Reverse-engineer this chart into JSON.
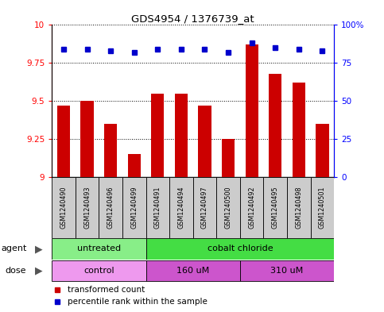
{
  "title": "GDS4954 / 1376739_at",
  "samples": [
    "GSM1240490",
    "GSM1240493",
    "GSM1240496",
    "GSM1240499",
    "GSM1240491",
    "GSM1240494",
    "GSM1240497",
    "GSM1240500",
    "GSM1240492",
    "GSM1240495",
    "GSM1240498",
    "GSM1240501"
  ],
  "transformed_count": [
    9.47,
    9.5,
    9.35,
    9.15,
    9.55,
    9.55,
    9.47,
    9.25,
    9.87,
    9.68,
    9.62,
    9.35
  ],
  "percentile_rank": [
    84,
    84,
    83,
    82,
    84,
    84,
    84,
    82,
    88,
    85,
    84,
    83
  ],
  "ylim_left": [
    9.0,
    10.0
  ],
  "ylim_right": [
    0,
    100
  ],
  "yticks_left": [
    9.0,
    9.25,
    9.5,
    9.75,
    10.0
  ],
  "yticks_right": [
    0,
    25,
    50,
    75,
    100
  ],
  "ytick_labels_left": [
    "9",
    "9.25",
    "9.5",
    "9.75",
    "10"
  ],
  "ytick_labels_right": [
    "0",
    "25",
    "50",
    "75",
    "100%"
  ],
  "bar_color": "#cc0000",
  "dot_color": "#0000cc",
  "agent_groups": [
    {
      "label": "untreated",
      "start": 0,
      "end": 4,
      "color": "#88ee88"
    },
    {
      "label": "cobalt chloride",
      "start": 4,
      "end": 12,
      "color": "#44dd44"
    }
  ],
  "dose_groups": [
    {
      "label": "control",
      "start": 0,
      "end": 4,
      "color": "#ee99ee"
    },
    {
      "label": "160 uM",
      "start": 4,
      "end": 8,
      "color": "#cc55cc"
    },
    {
      "label": "310 uM",
      "start": 8,
      "end": 12,
      "color": "#cc55cc"
    }
  ],
  "agent_label": "agent",
  "dose_label": "dose",
  "legend_bar_label": "transformed count",
  "legend_dot_label": "percentile rank within the sample",
  "sample_bg_color": "#cccccc",
  "plot_bg_color": "#ffffff",
  "fig_bg_color": "#ffffff"
}
